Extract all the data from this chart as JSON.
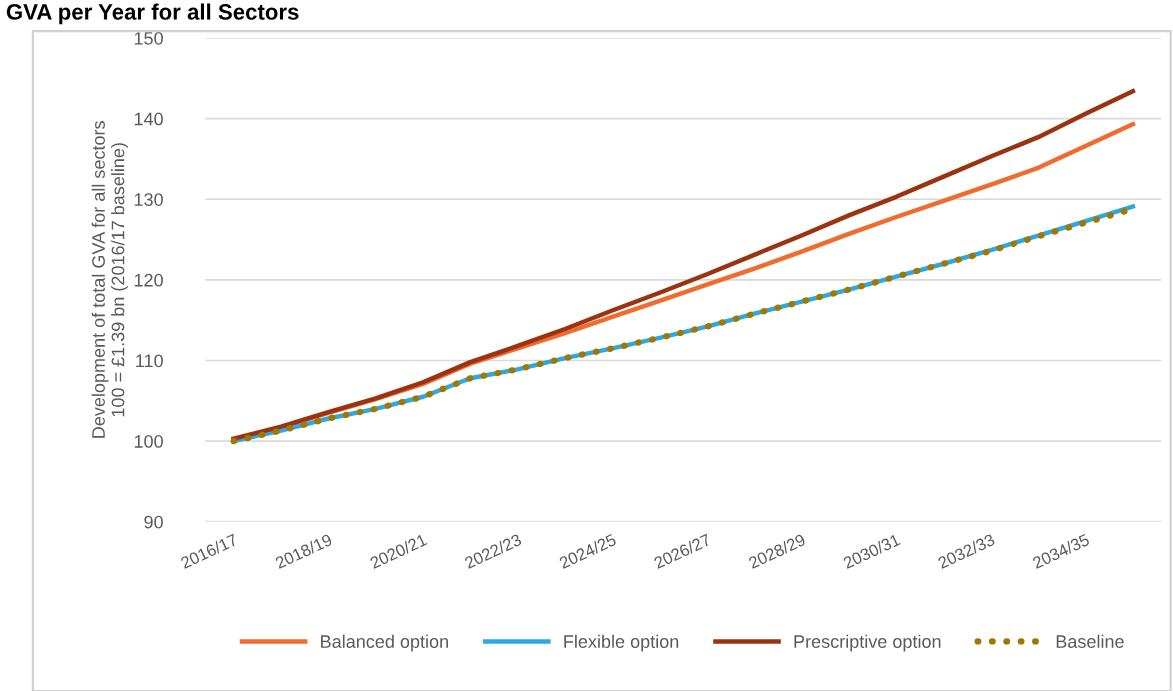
{
  "chart_data": {
    "type": "line",
    "title": "GVA per Year for all Sectors",
    "ylabel": "Development of total GVA for all sectors\n100 = £1.39 bn (2016/17 baseline)",
    "categories": [
      "2016/17",
      null,
      "2018/19",
      null,
      "2020/21",
      null,
      "2022/23",
      null,
      "2024/25",
      null,
      "2026/27",
      null,
      "2028/29",
      null,
      "2030/31",
      null,
      "2032/33",
      null,
      "2034/35",
      null
    ],
    "series": [
      {
        "name": "Balanced option",
        "color": "#f26b2e",
        "line_style": "solid",
        "values": [
          100.2,
          101.7,
          103.5,
          105.2,
          107.1,
          109.6,
          111.5,
          113.4,
          115.4,
          117.4,
          119.4,
          121.4,
          123.5,
          125.7,
          127.8,
          129.8,
          131.8,
          133.9,
          136.6,
          139.3
        ]
      },
      {
        "name": "Flexible option",
        "color": "#2ea8e0",
        "line_style": "solid",
        "values": [
          100.0,
          101.3,
          102.8,
          104.0,
          105.5,
          107.8,
          108.9,
          110.3,
          111.5,
          112.8,
          114.2,
          115.8,
          117.3,
          118.8,
          120.4,
          122.0,
          123.7,
          125.5,
          127.3,
          129.1
        ]
      },
      {
        "name": "Prescriptive option",
        "color": "#9b3310",
        "line_style": "solid",
        "values": [
          100.3,
          101.8,
          103.6,
          105.3,
          107.3,
          109.8,
          111.8,
          113.9,
          116.2,
          118.4,
          120.7,
          123.1,
          125.5,
          128.0,
          130.3,
          132.8,
          135.3,
          137.7,
          140.6,
          143.4
        ]
      },
      {
        "name": "Baseline",
        "color": "#a07800",
        "line_style": "dotted",
        "values": [
          100.0,
          101.3,
          102.8,
          104.0,
          105.5,
          107.8,
          108.9,
          110.3,
          111.5,
          112.8,
          114.2,
          115.8,
          117.3,
          118.8,
          120.4,
          122.0,
          123.6,
          125.4,
          127.1,
          128.8
        ]
      }
    ],
    "ylim": [
      90,
      150
    ],
    "yticks": [
      90,
      100,
      110,
      120,
      130,
      140,
      150
    ],
    "grid": "y",
    "legend": "bottom",
    "marker": "none"
  }
}
